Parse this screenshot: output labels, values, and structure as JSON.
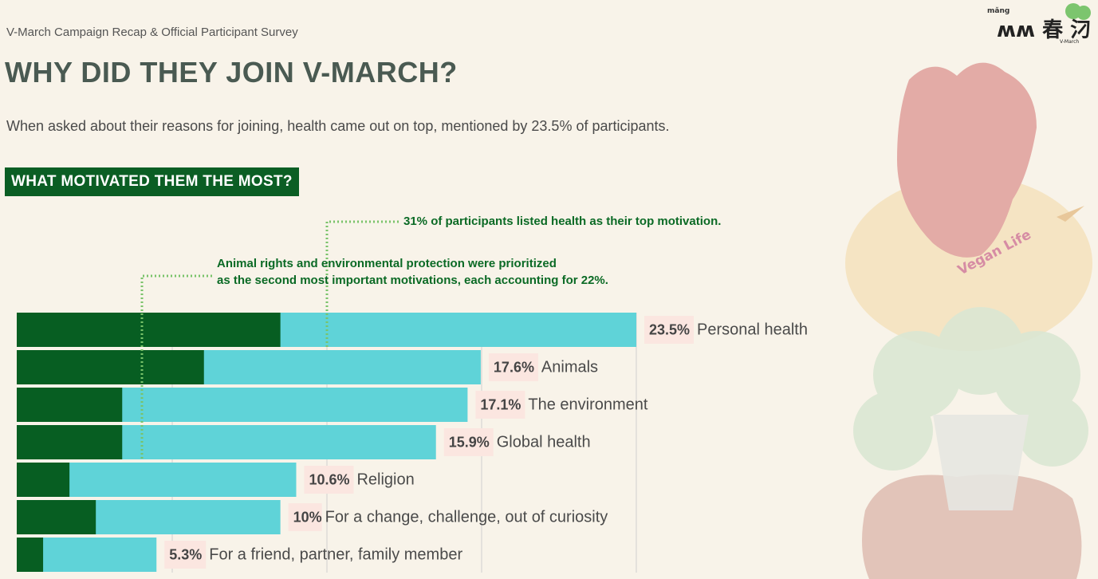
{
  "header": {
    "subtitle": "V-March Campaign Recap & Official Participant Survey",
    "title": "WHY DID THEY JOIN V-MARCH?",
    "lead": "When asked about their reasons for joining, health came out on top, mentioned by 23.5% of participants."
  },
  "section_label": "WHAT MOTIVATED THEM THE MOST?",
  "annotations": {
    "health": "31% of participants listed health as their top motivation.",
    "animals_env_line1": "Animal rights and environmental protection were prioritized",
    "animals_env_line2": "as the second most important motivations, each accounting for 22%."
  },
  "decor": {
    "vegan_text": "Vegan Life",
    "logo_small_top": "mǎng",
    "logo_small_right": "V-March"
  },
  "colors": {
    "top_choice": "#075e22",
    "total": "#5fd3d8",
    "label_bg": "#fbe6e0",
    "accent": "#0b5e24",
    "dotted": "#7ac36a"
  },
  "chart_data": {
    "type": "bar",
    "orientation": "horizontal",
    "categories": [
      "Personal health",
      "Animals",
      "The environment",
      "Global health",
      "Religion",
      "For a change, challenge, out of curiosity",
      "For a friend, partner, family member"
    ],
    "series": [
      {
        "values": [
          23.5,
          17.6,
          17.1,
          15.9,
          10.6,
          10,
          5.3
        ]
      },
      {
        "values": [
          10.0,
          7.1,
          4.0,
          4.0,
          2.0,
          3.0,
          1.0
        ]
      }
    ],
    "value_labels": [
      "23.5%",
      "17.6%",
      "17.1%",
      "15.9%",
      "10.6%",
      "10%",
      "5.3%"
    ],
    "xlim": [
      0,
      23.5
    ],
    "grid": true
  }
}
